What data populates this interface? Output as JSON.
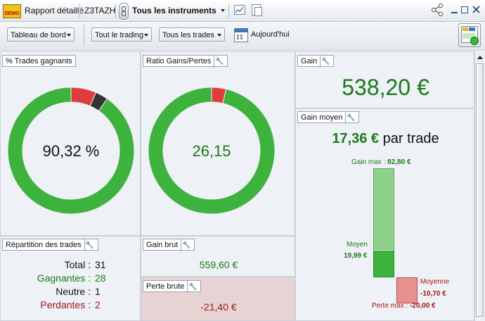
{
  "window": {
    "demo_badge": "DEMO",
    "tab_rapport": "Rapport détaillé",
    "tab_account": "Z3TAZH",
    "instrument_select": "Tous les instruments"
  },
  "toolbar": {
    "tableau": "Tableau de bord",
    "trading": "Tout le trading",
    "trades": "Tous les trades",
    "date": "Aujourd'hui"
  },
  "panels": {
    "trades_gagnants": {
      "title": "% Trades gagnants",
      "value": "90,32 %"
    },
    "ratio": {
      "title": "Ratio Gains/Pertes",
      "value": "26,15"
    },
    "gain": {
      "title": "Gain",
      "value": "538,20 €"
    },
    "gain_moyen": {
      "title": "Gain moyen",
      "headline_value": "17,36 €",
      "headline_suffix": "par trade",
      "gain_max_label": "Gain max :",
      "gain_max_value": "82,80 €",
      "moyen_label": "Moyen",
      "moyen_value": "19,99 €",
      "moyenne_label": "Moyenne",
      "moyenne_value": "-10,70 €",
      "perte_max_label": "Perte max :",
      "perte_max_value": "-20,00 €"
    },
    "repartition": {
      "title": "Répartition des trades",
      "total_label": "Total :",
      "total_value": "31",
      "gagnantes_label": "Gagnantes :",
      "gagnantes_value": "28",
      "neutre_label": "Neutre :",
      "neutre_value": "1",
      "perdantes_label": "Perdantes :",
      "perdantes_value": "2"
    },
    "gain_brut": {
      "title": "Gain brut",
      "value": "559,60 €"
    },
    "perte_brute": {
      "title": "Perte brute",
      "value": "-21,40 €"
    }
  },
  "chart_data": [
    {
      "type": "pie",
      "title": "% Trades gagnants",
      "labels": [
        "Gagnantes",
        "Neutre",
        "Perdantes"
      ],
      "values": [
        28,
        1,
        2
      ],
      "colors": [
        "#3db33d",
        "#333333",
        "#e03c3c"
      ]
    },
    {
      "type": "pie",
      "title": "Ratio Gains/Pertes",
      "labels": [
        "Gain brut",
        "Perte brute"
      ],
      "values": [
        559.6,
        21.4
      ],
      "colors": [
        "#3db33d",
        "#e03c3c"
      ]
    },
    {
      "type": "bar",
      "title": "Gain moyen",
      "categories": [
        "Gain max",
        "Moyen",
        "Moyenne",
        "Perte max"
      ],
      "values": [
        82.8,
        19.99,
        -10.7,
        -20.0
      ]
    }
  ],
  "colors": {
    "green": "#3db33d",
    "dark_green": "#1a7a1a",
    "red": "#e03c3c",
    "dark_red": "#a01818"
  }
}
